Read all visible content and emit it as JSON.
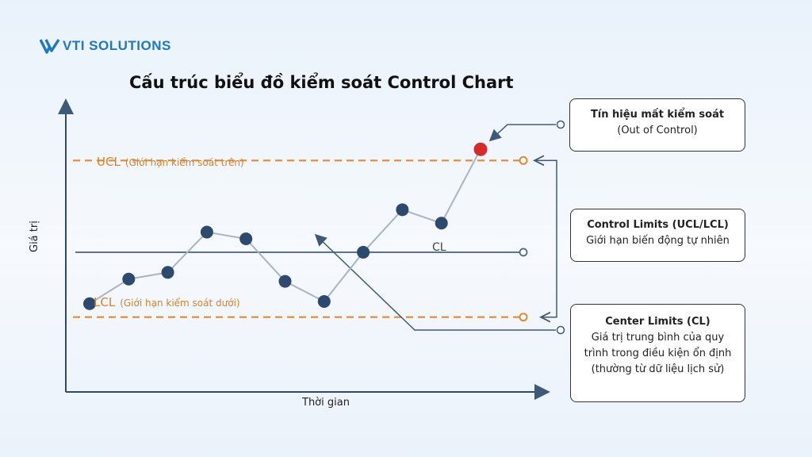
{
  "brand": {
    "logo_text": "VTI SOLUTIONS",
    "color": "#1e78c2"
  },
  "title": "Cấu trúc biểu đồ kiểm soát Control Chart",
  "chart_data": {
    "type": "line",
    "xlabel": "Thời gian",
    "ylabel": "Giá trị",
    "values": [
      2.1,
      3.2,
      3.5,
      5.3,
      5.0,
      3.1,
      2.2,
      4.4,
      6.3,
      5.7,
      9.0
    ],
    "ylim": [
      0,
      10
    ],
    "ucl": 8.5,
    "cl": 4.4,
    "lcl": 1.5,
    "out_of_control_index": 10,
    "grid": false
  },
  "limits": {
    "ucl_name": "UCL",
    "ucl_desc": "(Giới hạn kiểm soát trên)",
    "lcl_name": "LCL",
    "lcl_desc": "(Giới hạn kiểm soát dưới)",
    "cl_name": "CL"
  },
  "callouts": [
    {
      "title": "Tín hiệu mất kiểm soát",
      "lines": [
        "(Out of Control)"
      ]
    },
    {
      "title": "Control Limits (UCL/LCL)",
      "lines": [
        "Giới hạn biến động tự nhiên"
      ]
    },
    {
      "title": "Center Limits (CL)",
      "lines": [
        "Giá trị trung bình của quy",
        "trình trong điều kiện ổn định",
        "(thường từ dữ liệu lịch sử)"
      ]
    }
  ],
  "colors": {
    "point": "#2d4a6e",
    "out_point": "#d62a2a",
    "limit_line": "#e08a35",
    "center_line": "#4a6a8a",
    "connector": "#3d5a78",
    "data_line": "#a8b4c2"
  }
}
